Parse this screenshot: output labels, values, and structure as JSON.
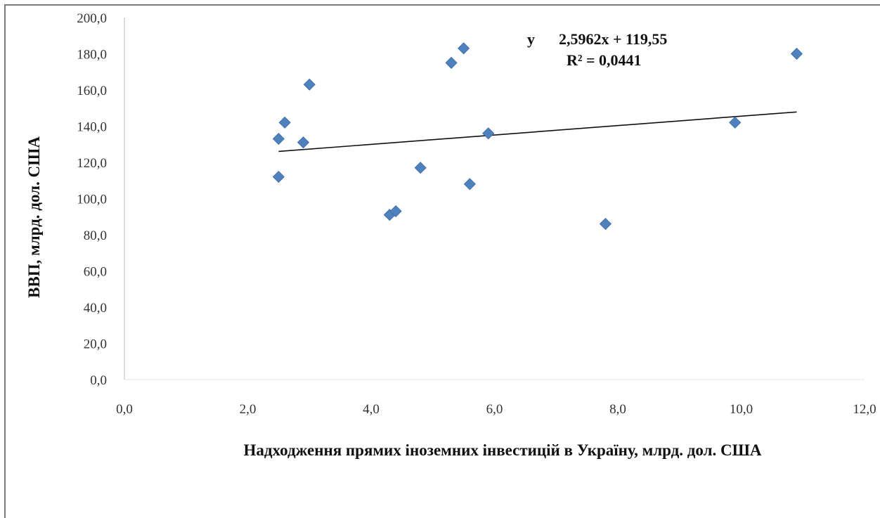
{
  "chart_data": {
    "type": "scatter",
    "xlabel": "Надходження прямих іноземних інвестицій  в Україну, млрд. дол. США",
    "ylabel": "ВВП, млрд.  дол. США",
    "xlim": [
      0,
      12
    ],
    "ylim": [
      0,
      200
    ],
    "x_ticks": [
      "0,0",
      "2,0",
      "4,0",
      "6,0",
      "8,0",
      "10,0",
      "12,0"
    ],
    "y_ticks": [
      "0,0",
      "20,0",
      "40,0",
      "60,0",
      "80,0",
      "100,0",
      "120,0",
      "140,0",
      "160,0",
      "180,0",
      "200,0"
    ],
    "grid": false,
    "marker": "diamond",
    "marker_color": "#4f81bd",
    "series": [
      {
        "points": [
          {
            "x": 2.5,
            "y": 133
          },
          {
            "x": 2.5,
            "y": 112
          },
          {
            "x": 2.6,
            "y": 142
          },
          {
            "x": 2.9,
            "y": 131
          },
          {
            "x": 3.0,
            "y": 163
          },
          {
            "x": 4.3,
            "y": 91
          },
          {
            "x": 4.4,
            "y": 93
          },
          {
            "x": 4.8,
            "y": 117
          },
          {
            "x": 5.3,
            "y": 175
          },
          {
            "x": 5.5,
            "y": 183
          },
          {
            "x": 5.6,
            "y": 108
          },
          {
            "x": 5.9,
            "y": 136
          },
          {
            "x": 7.8,
            "y": 86
          },
          {
            "x": 9.9,
            "y": 142
          },
          {
            "x": 10.9,
            "y": 180
          }
        ]
      }
    ],
    "trendline": {
      "type": "linear",
      "slope": 2.5962,
      "intercept": 119.55,
      "x_range": [
        2.5,
        10.9
      ],
      "color": "#111111"
    },
    "annotations": {
      "equation_prefix": "y",
      "equation_body": "2,5962x + 119,55",
      "r_squared": "R² = 0,0441"
    }
  }
}
